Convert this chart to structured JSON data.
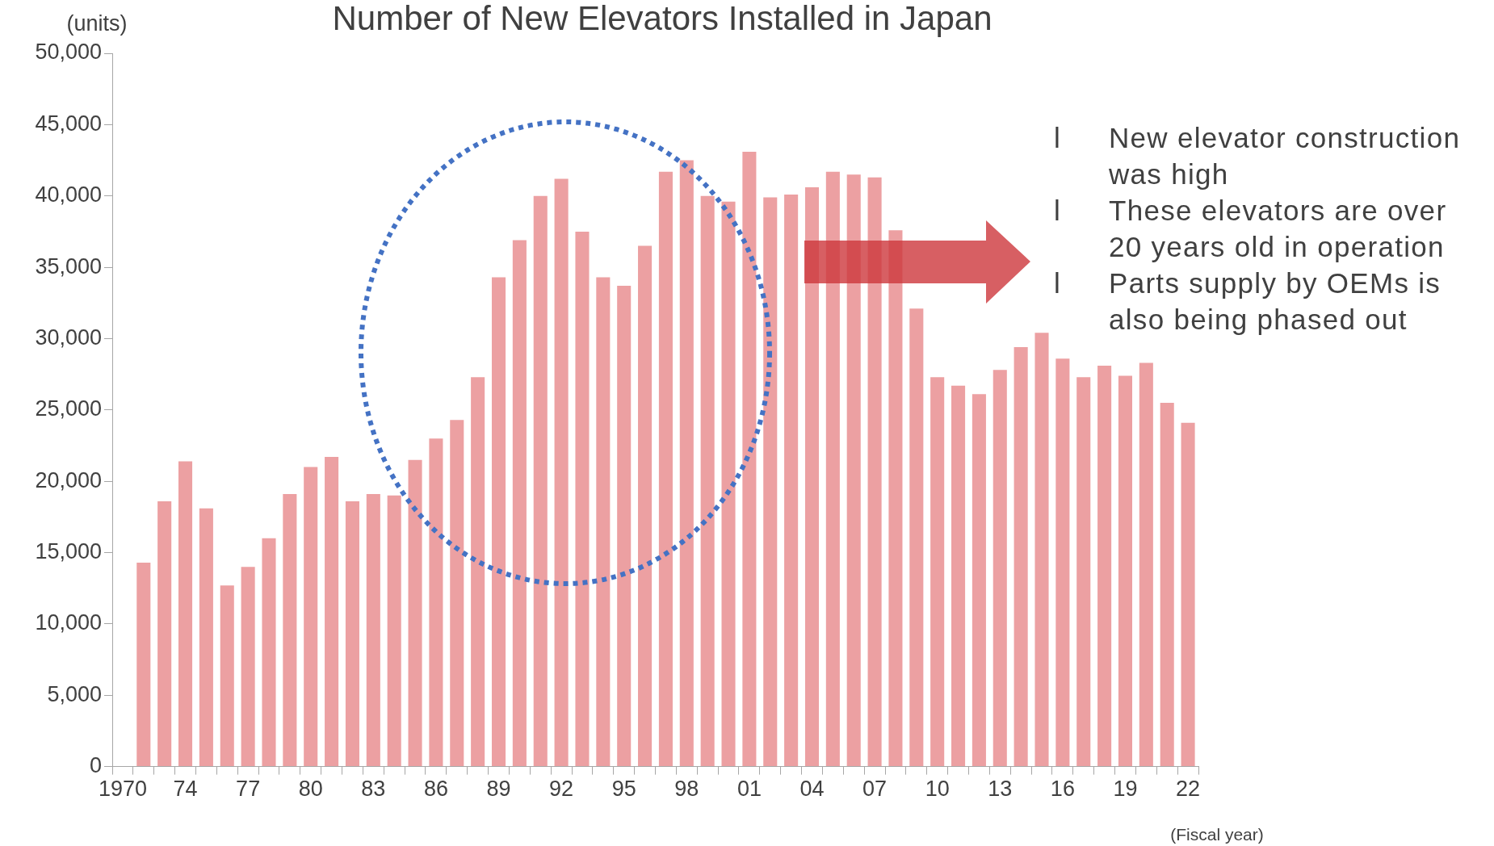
{
  "chart_data": {
    "type": "bar",
    "title": "Number of New Elevators Installed in Japan",
    "ylabel": "(units)",
    "xlabel": "(Fiscal year)",
    "categories": [
      "1970",
      null,
      null,
      "74",
      null,
      null,
      "77",
      null,
      null,
      "80",
      null,
      null,
      "83",
      null,
      null,
      "86",
      null,
      null,
      "89",
      null,
      null,
      "92",
      null,
      null,
      "95",
      null,
      null,
      "98",
      null,
      null,
      "01",
      null,
      null,
      "04",
      null,
      null,
      "07",
      null,
      null,
      "10",
      null,
      null,
      "13",
      null,
      null,
      "16",
      null,
      null,
      "19",
      null,
      null,
      "22"
    ],
    "values": [
      null,
      14300,
      18600,
      21400,
      18100,
      12700,
      14000,
      16000,
      19100,
      21000,
      21700,
      18600,
      19100,
      19000,
      21500,
      23000,
      24300,
      27300,
      34300,
      36900,
      40000,
      41200,
      37500,
      34300,
      33700,
      36500,
      41700,
      42500,
      40000,
      39600,
      43100,
      39900,
      40100,
      40600,
      41700,
      41500,
      41300,
      37600,
      32100,
      27300,
      26700,
      26100,
      27800,
      29400,
      30400,
      28600,
      27300,
      28100,
      27400,
      28300,
      25500,
      24100
    ],
    "color": "#eca0a2",
    "ylim": [
      0,
      50000
    ],
    "yticks": [
      0,
      {
        "value": 5000,
        "label": "5,000"
      },
      {
        "value": 10000,
        "label": "10,000"
      },
      {
        "value": 15000,
        "label": "15,000"
      },
      {
        "value": 20000,
        "label": "20,000"
      },
      {
        "value": 25000,
        "label": "25,000"
      },
      {
        "value": 30000,
        "label": "30,000"
      },
      {
        "value": 35000,
        "label": "35,000"
      },
      {
        "value": 40000,
        "label": "40,000"
      },
      {
        "value": 45000,
        "label": "45,000"
      },
      {
        "value": 50000,
        "label": "50,000"
      }
    ],
    "grid": false,
    "legend": false,
    "annotations": [
      "l New elevator construction was high",
      "l These elevators are over 20 years old in operation",
      "l Parts supply by OEMs is also being phased out"
    ]
  }
}
